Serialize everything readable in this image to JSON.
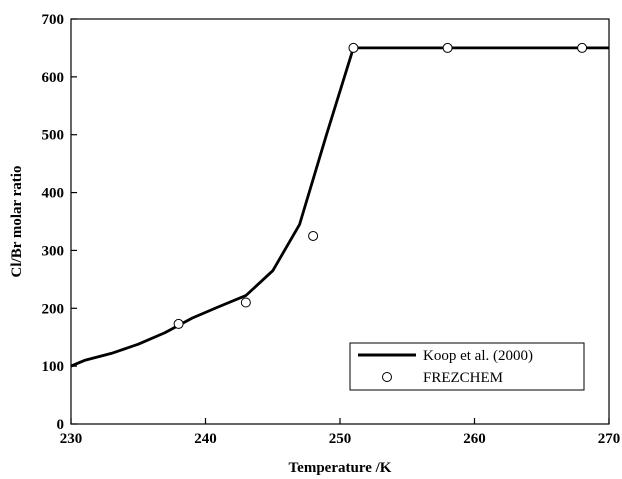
{
  "chart_data": {
    "type": "line",
    "xlabel": "Temperature /K",
    "ylabel": "Cl/Br molar ratio",
    "xlim": [
      230,
      270
    ],
    "ylim": [
      0,
      700
    ],
    "xticks": [
      "230",
      "240",
      "250",
      "260",
      "270"
    ],
    "yticks": [
      "0",
      "100",
      "200",
      "300",
      "400",
      "500",
      "600",
      "700"
    ],
    "grid": false,
    "legend_position": "bottom-right",
    "series": [
      {
        "name": "Koop et al. (2000)",
        "style": "line",
        "color": "#000000",
        "x": [
          230,
          231,
          233,
          235,
          237,
          239,
          241,
          243,
          245,
          247,
          249,
          251,
          252,
          255,
          260,
          265,
          270
        ],
        "y": [
          100,
          110,
          122,
          138,
          158,
          183,
          203,
          222,
          265,
          345,
          500,
          650,
          650,
          650,
          650,
          650,
          650
        ]
      },
      {
        "name": "FREZCHEM",
        "style": "marker",
        "marker": "open-circle",
        "x": [
          238,
          243,
          248,
          251,
          258,
          268
        ],
        "y": [
          173,
          210,
          325,
          650,
          650,
          650
        ]
      }
    ]
  }
}
